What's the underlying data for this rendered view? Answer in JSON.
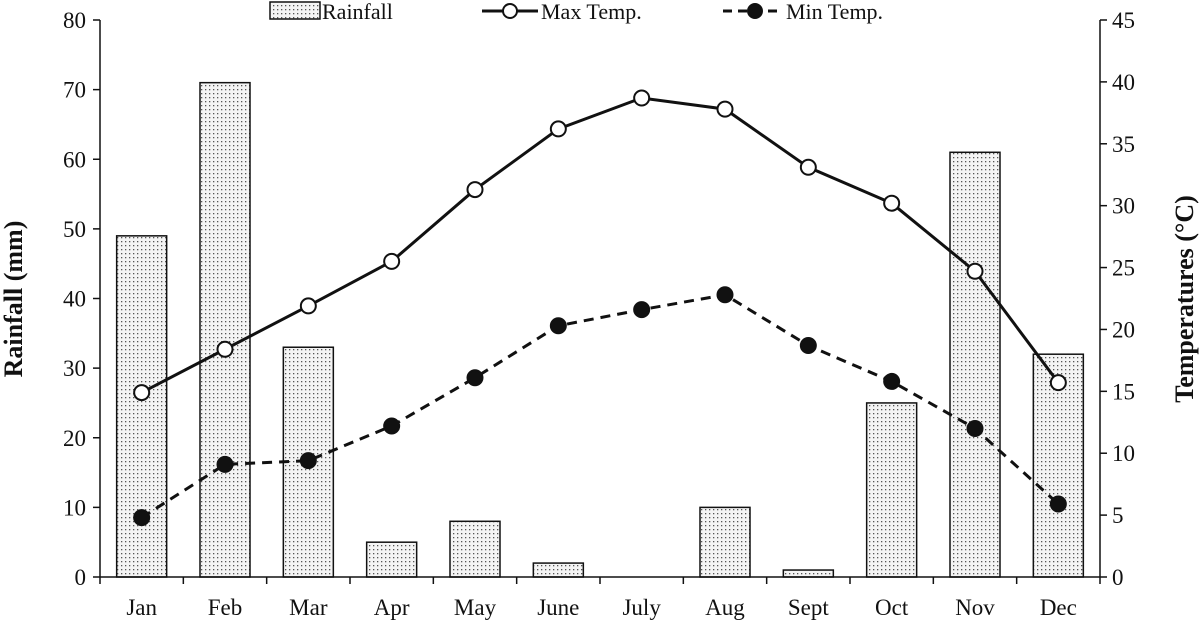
{
  "chart_data": {
    "type": "bar+line",
    "title": "",
    "categories": [
      "Jan",
      "Feb",
      "Mar",
      "Apr",
      "May",
      "June",
      "July",
      "Aug",
      "Sept",
      "Oct",
      "Nov",
      "Dec"
    ],
    "series": [
      {
        "name": "Rainfall",
        "type": "bar",
        "axis": "left",
        "values": [
          49,
          71,
          33,
          5,
          8,
          2,
          0,
          10,
          1,
          25,
          61,
          32
        ]
      },
      {
        "name": "Max Temp.",
        "type": "line",
        "axis": "right",
        "line_style": "solid",
        "marker": "open-circle",
        "values": [
          14.9,
          18.4,
          21.9,
          25.5,
          31.3,
          36.2,
          38.7,
          37.8,
          33.1,
          30.2,
          24.7,
          15.7
        ]
      },
      {
        "name": "Min Temp.",
        "type": "line",
        "axis": "right",
        "line_style": "dashed",
        "marker": "filled-circle",
        "values": [
          4.8,
          9.1,
          9.4,
          12.2,
          16.1,
          20.3,
          21.6,
          22.8,
          18.7,
          15.8,
          12.0,
          5.9
        ]
      }
    ],
    "ylabel": "Rainfall (mm)",
    "y2label": "Temperatures (°C)",
    "ylim": [
      0,
      80
    ],
    "y2lim": [
      0,
      45
    ],
    "yticks": [
      "0",
      "10",
      "20",
      "30",
      "40",
      "50",
      "60",
      "70",
      "80"
    ],
    "y2ticks": [
      "0",
      "5",
      "10",
      "15",
      "20",
      "25",
      "30",
      "35",
      "40",
      "45"
    ],
    "grid": false,
    "legend_position": "top",
    "colors": {
      "line": "#111111",
      "bar_fill": "#f2f2f2",
      "bar_dots": "#555555"
    }
  }
}
